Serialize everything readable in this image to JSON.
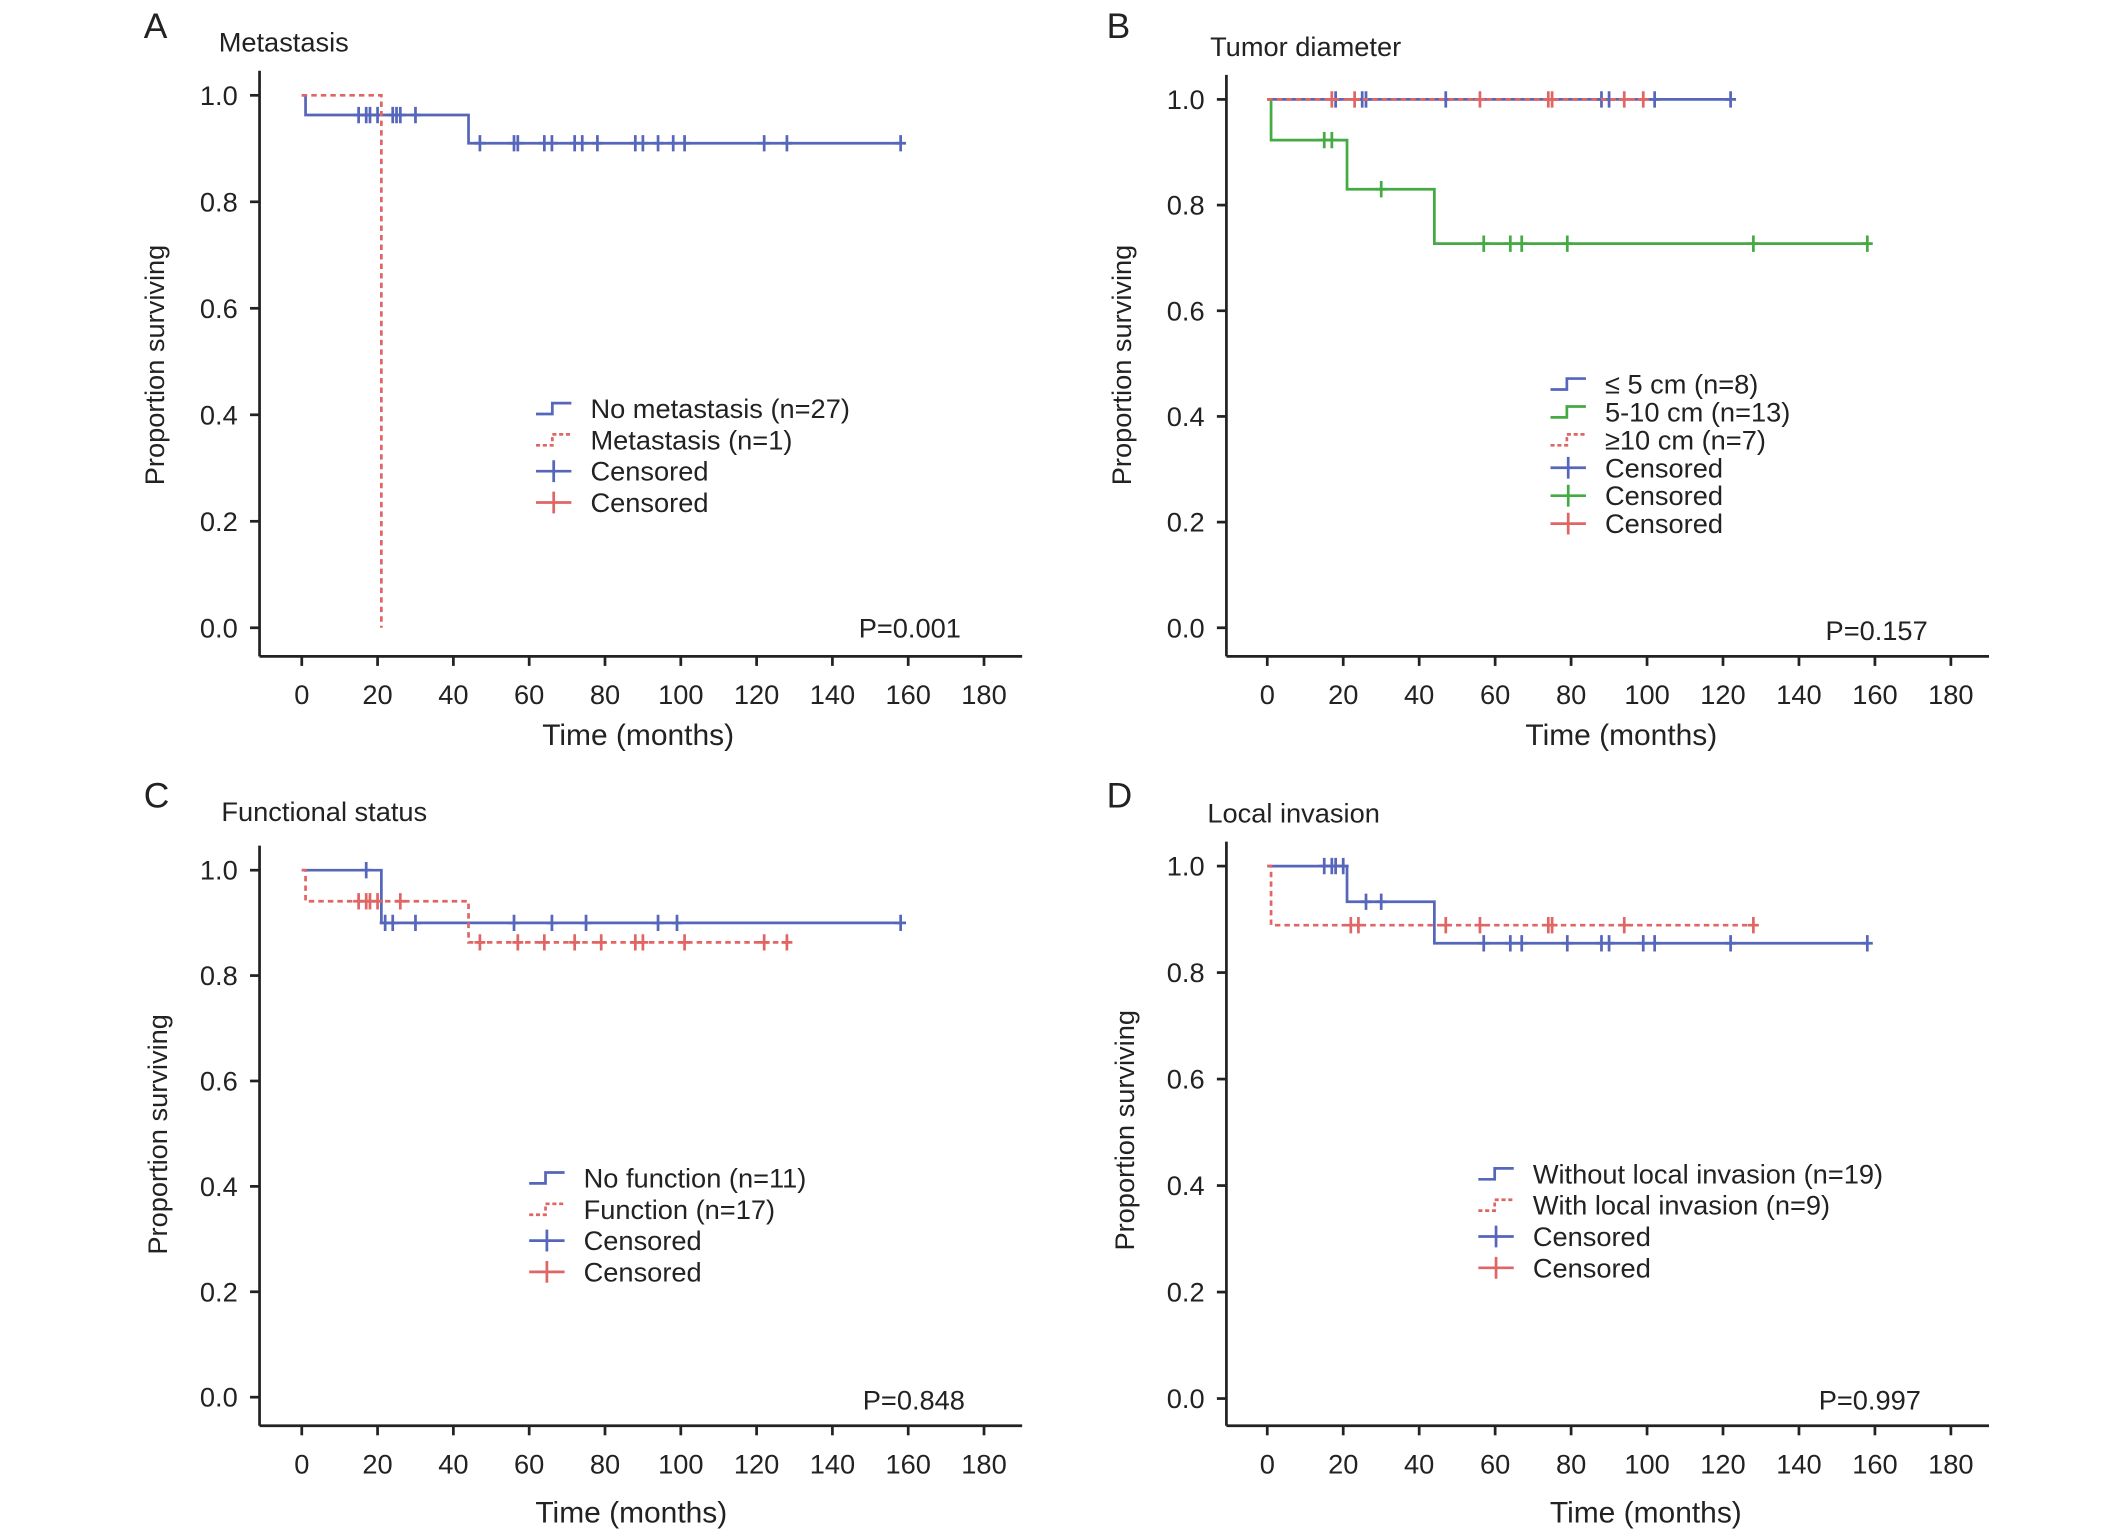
{
  "chart_data": [
    {
      "type": "line",
      "panel_letter": "A",
      "title": "Metastasis",
      "xlabel": "Time (months)",
      "ylabel": "Proportion surviving",
      "xlim": [
        0,
        180
      ],
      "ylim": [
        0,
        1
      ],
      "xticks": [
        "0",
        "20",
        "40",
        "60",
        "80",
        "100",
        "120",
        "140",
        "160",
        "180"
      ],
      "yticks": [
        "0.0",
        "0.2",
        "0.4",
        "0.6",
        "0.8",
        "1.0"
      ],
      "p_value": "P=0.001",
      "series": [
        {
          "name": "No metastasis (n=27)",
          "color": "#5566bb",
          "dashed": false,
          "steps": [
            [
              0,
              1.0
            ],
            [
              1,
              0.963
            ],
            [
              44,
              0.91
            ],
            [
              158,
              0.91
            ]
          ],
          "censored": [
            15,
            17,
            18,
            20,
            24,
            25,
            26,
            30,
            47,
            56,
            57,
            64,
            66,
            72,
            74,
            78,
            88,
            90,
            94,
            98,
            101,
            122,
            128,
            158
          ],
          "censor_label": "Censored"
        },
        {
          "name": "Metastasis (n=1)",
          "color": "#e06666",
          "dashed": true,
          "steps": [
            [
              0,
              1.0
            ],
            [
              21,
              0.0
            ],
            [
              21,
              0.0
            ]
          ],
          "censored": [],
          "censor_label": "Censored"
        }
      ]
    },
    {
      "type": "line",
      "panel_letter": "B",
      "title": "Tumor diameter",
      "xlabel": "Time (months)",
      "ylabel": "Proportion surviving",
      "xlim": [
        0,
        180
      ],
      "ylim": [
        0,
        1
      ],
      "xticks": [
        "0",
        "20",
        "40",
        "60",
        "80",
        "100",
        "120",
        "140",
        "160",
        "180"
      ],
      "yticks": [
        "0.0",
        "0.2",
        "0.4",
        "0.6",
        "0.8",
        "1.0"
      ],
      "p_value": "P=0.157",
      "series": [
        {
          "name": "≤ 5 cm (n=8)",
          "color": "#5566bb",
          "dashed": false,
          "steps": [
            [
              0,
              1.0
            ],
            [
              122,
              1.0
            ]
          ],
          "censored": [
            18,
            25,
            26,
            47,
            88,
            90,
            102,
            122
          ],
          "censor_label": "Censored"
        },
        {
          "name": "5-10 cm (n=13)",
          "color": "#44aa44",
          "dashed": false,
          "steps": [
            [
              0,
              1.0
            ],
            [
              1,
              0.923
            ],
            [
              21,
              0.83
            ],
            [
              44,
              0.727
            ],
            [
              158,
              0.727
            ]
          ],
          "censored": [
            15,
            17,
            30,
            57,
            64,
            67,
            79,
            128,
            158
          ],
          "censor_label": "Censored"
        },
        {
          "name": "≥10 cm (n=7)",
          "color": "#e06666",
          "dashed": true,
          "steps": [
            [
              0,
              1.0
            ],
            [
              100,
              1.0
            ]
          ],
          "censored": [
            17,
            23,
            56,
            74,
            75,
            94,
            99
          ],
          "censor_label": "Censored"
        }
      ]
    },
    {
      "type": "line",
      "panel_letter": "C",
      "title": "Functional status",
      "xlabel": "Time (months)",
      "ylabel": "Proportion surviving",
      "xlim": [
        0,
        180
      ],
      "ylim": [
        0,
        1
      ],
      "xticks": [
        "0",
        "20",
        "40",
        "60",
        "80",
        "100",
        "120",
        "140",
        "160",
        "180"
      ],
      "yticks": [
        "0.0",
        "0.2",
        "0.4",
        "0.6",
        "0.8",
        "1.0"
      ],
      "p_value": "P=0.848",
      "series": [
        {
          "name": "No function (n=11)",
          "color": "#5566bb",
          "dashed": false,
          "steps": [
            [
              0,
              1.0
            ],
            [
              21,
              0.9
            ],
            [
              158,
              0.9
            ]
          ],
          "censored": [
            17,
            22,
            24,
            30,
            56,
            66,
            75,
            94,
            99,
            158
          ],
          "censor_label": "Censored"
        },
        {
          "name": "Function (n=17)",
          "color": "#e06666",
          "dashed": true,
          "steps": [
            [
              0,
              1.0
            ],
            [
              1,
              0.941
            ],
            [
              44,
              0.863
            ],
            [
              128,
              0.863
            ]
          ],
          "censored": [
            15,
            17,
            18,
            20,
            26,
            47,
            57,
            64,
            72,
            79,
            88,
            90,
            101,
            122,
            128
          ],
          "censor_label": "Censored"
        }
      ]
    },
    {
      "type": "line",
      "panel_letter": "D",
      "title": "Local invasion",
      "xlabel": "Time (months)",
      "ylabel": "Proportion surviving",
      "xlim": [
        0,
        180
      ],
      "ylim": [
        0,
        1
      ],
      "xticks": [
        "0",
        "20",
        "40",
        "60",
        "80",
        "100",
        "120",
        "140",
        "160",
        "180"
      ],
      "yticks": [
        "0.0",
        "0.2",
        "0.4",
        "0.6",
        "0.8",
        "1.0"
      ],
      "p_value": "P=0.997",
      "series": [
        {
          "name": "Without local invasion (n=19)",
          "color": "#5566bb",
          "dashed": false,
          "steps": [
            [
              0,
              1.0
            ],
            [
              21,
              0.933
            ],
            [
              44,
              0.855
            ],
            [
              158,
              0.855
            ]
          ],
          "censored": [
            15,
            17,
            18,
            20,
            26,
            30,
            57,
            64,
            67,
            79,
            88,
            90,
            99,
            102,
            122,
            158
          ],
          "censor_label": "Censored"
        },
        {
          "name": "With local invasion (n=9)",
          "color": "#e06666",
          "dashed": true,
          "steps": [
            [
              0,
              1.0
            ],
            [
              1,
              0.889
            ],
            [
              128,
              0.889
            ]
          ],
          "censored": [
            22,
            24,
            47,
            56,
            74,
            75,
            94,
            128
          ],
          "censor_label": "Censored"
        }
      ]
    }
  ]
}
